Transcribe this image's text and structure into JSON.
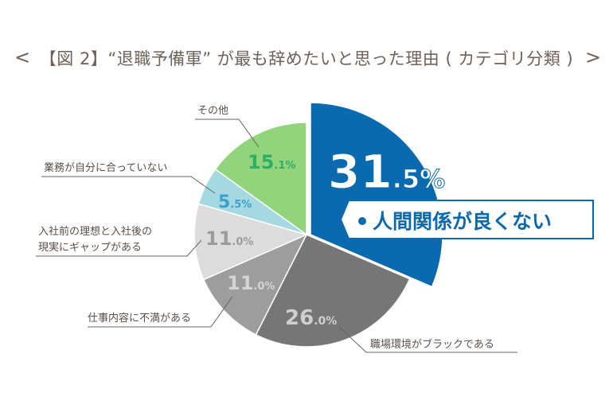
{
  "chart_data": {
    "type": "pie",
    "title": "【図 2】“退職予備軍” が最も辞めたいと思った理由 ( カテゴリ分類 )",
    "nav": {
      "prev": "<",
      "next": ">"
    },
    "start_angle": "top",
    "direction": "clockwise",
    "slices": [
      {
        "label": "人間関係が良くない",
        "value": 31.5,
        "int": "31",
        "dec": ".5%",
        "color": "#0a6ab0",
        "label_color": "#ffffff",
        "exploded": true
      },
      {
        "label": "職場環境がブラックである",
        "value": 26.0,
        "int": "26",
        "dec": ".0%",
        "color": "#767676",
        "label_color": "#cfcfcf"
      },
      {
        "label": "仕事内容に不満がある",
        "value": 11.0,
        "int": "11",
        "dec": ".0%",
        "color": "#9d9d9d",
        "label_color": "#d4d4d4"
      },
      {
        "label": "入社前の理想と入社後の現実にギャップがある",
        "label_lines": [
          "入社前の理想と入社後の",
          "現実にギャップがある"
        ],
        "value": 11.0,
        "int": "11",
        "dec": ".0%",
        "color": "#dcdcdc",
        "label_color": "#9b9b9b"
      },
      {
        "label": "業務が自分に合っていない",
        "value": 5.5,
        "int": "5",
        "dec": ".5%",
        "color": "#a5d9e1",
        "label_color": "#3aa0cc"
      },
      {
        "label": "その他",
        "value": 15.1,
        "int": "15",
        "dec": ".1%",
        "color": "#92d47c",
        "label_color": "#2fae66"
      }
    ]
  }
}
